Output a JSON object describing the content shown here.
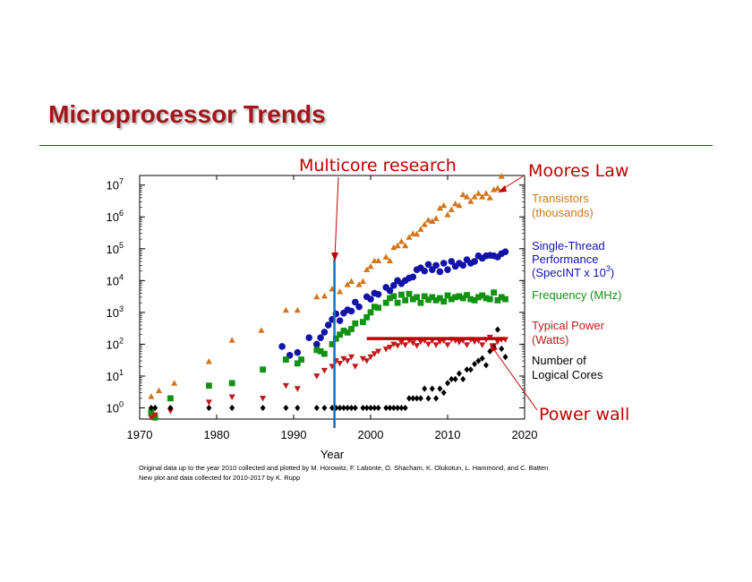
{
  "slide": {
    "title": "Microprocessor Trends"
  },
  "annotations": {
    "multicore_research": "Multicore research",
    "moores_law": "Moores Law",
    "power_wall": "Power wall"
  },
  "credits": {
    "line1": "Original data up to the year 2010 collected and plotted by M. Horowitz, F. Labonte, O. Shacham, K. Olukotun, L. Hammond, and C. Batten",
    "line2": "New plot and data collected for 2010-2017 by K. Rupp"
  },
  "colors": {
    "title": "#a3161b",
    "callout": "#c00000",
    "transistors": "#d2751b",
    "single_thread": "#1313a8",
    "frequency": "#129112",
    "power": "#c01b1b",
    "cores": "#000000",
    "marker_line": "#1f6db3"
  },
  "chart_data": {
    "type": "scatter",
    "title": "",
    "xlabel": "Year",
    "ylabel": "",
    "xlim": [
      1970,
      2020
    ],
    "ylim_log10": [
      -0.35,
      7.3
    ],
    "y_scale": "log10",
    "x_ticks": [
      "1970",
      "1980",
      "1990",
      "2000",
      "2010",
      "2020"
    ],
    "y_tick_base": "10",
    "y_tick_exponents": [
      "0",
      "1",
      "2",
      "3",
      "4",
      "5",
      "6",
      "7"
    ],
    "legend_placement": "right",
    "vertical_marker_year": 1995.3,
    "power_wall_line": {
      "x": [
        1999.5,
        2017.5
      ],
      "value": 150
    },
    "series": [
      {
        "name": "Transistors",
        "legend": [
          "Transistors",
          "(thousands)"
        ],
        "marker": "triangle-up",
        "color": "#d2751b",
        "points": [
          [
            1971.5,
            2.3
          ],
          [
            1972.5,
            3.5
          ],
          [
            1974.5,
            6
          ],
          [
            1979,
            29
          ],
          [
            1982,
            134
          ],
          [
            1985.8,
            275
          ],
          [
            1989,
            1180
          ],
          [
            1990.5,
            1180
          ],
          [
            1993,
            3100
          ],
          [
            1994,
            3300
          ],
          [
            1995,
            5500
          ],
          [
            1996,
            4500
          ],
          [
            1997,
            7500
          ],
          [
            1997.5,
            9500
          ],
          [
            1998.5,
            7500
          ],
          [
            1999,
            9500
          ],
          [
            1999.5,
            22000
          ],
          [
            2000,
            28000
          ],
          [
            2000.5,
            42000
          ],
          [
            2001,
            42000
          ],
          [
            2002,
            55000
          ],
          [
            2002.5,
            42000
          ],
          [
            2003,
            110000
          ],
          [
            2003.5,
            125000
          ],
          [
            2004,
            170000
          ],
          [
            2004.5,
            125000
          ],
          [
            2005,
            230000
          ],
          [
            2005.5,
            300000
          ],
          [
            2006,
            290000
          ],
          [
            2006.5,
            410000
          ],
          [
            2007,
            580000
          ],
          [
            2007.5,
            800000
          ],
          [
            2008,
            730000
          ],
          [
            2008.5,
            900000
          ],
          [
            2009,
            1900000
          ],
          [
            2009.5,
            2300000
          ],
          [
            2010,
            1170000
          ],
          [
            2010.5,
            1700000
          ],
          [
            2011,
            2600000
          ],
          [
            2011.5,
            2300000
          ],
          [
            2012,
            5000000
          ],
          [
            2012.5,
            4300000
          ],
          [
            2013,
            3100000
          ],
          [
            2013.5,
            4300000
          ],
          [
            2014,
            5500000
          ],
          [
            2014.5,
            4300000
          ],
          [
            2015,
            5500000
          ],
          [
            2015.5,
            4000000
          ],
          [
            2016,
            7200000
          ],
          [
            2016.5,
            8000000
          ],
          [
            2017,
            19000000
          ]
        ]
      },
      {
        "name": "Single-Thread Performance",
        "legend": [
          "Single-Thread",
          "Performance",
          "(SpecINT x 10",
          "3",
          ")"
        ],
        "marker": "circle",
        "color": "#1313a8",
        "points": [
          [
            1988.5,
            85
          ],
          [
            1989.5,
            45
          ],
          [
            1990.5,
            55
          ],
          [
            1992,
            160
          ],
          [
            1993,
            100
          ],
          [
            1993.5,
            160
          ],
          [
            1994,
            240
          ],
          [
            1994.5,
            400
          ],
          [
            1995,
            600
          ],
          [
            1995.5,
            900
          ],
          [
            1996,
            550
          ],
          [
            1996.5,
            950
          ],
          [
            1997,
            1200
          ],
          [
            1997.5,
            1100
          ],
          [
            1998,
            2100
          ],
          [
            1998.5,
            1500
          ],
          [
            1999.5,
            3100
          ],
          [
            2000,
            2600
          ],
          [
            2000.5,
            4000
          ],
          [
            2001,
            3700
          ],
          [
            2002,
            6100
          ],
          [
            2002.5,
            4800
          ],
          [
            2003,
            7000
          ],
          [
            2003.5,
            10000
          ],
          [
            2004,
            8000
          ],
          [
            2004.5,
            10000
          ],
          [
            2005,
            12000
          ],
          [
            2005.5,
            13000
          ],
          [
            2006,
            22000
          ],
          [
            2006.5,
            25000
          ],
          [
            2007,
            20000
          ],
          [
            2007.5,
            32000
          ],
          [
            2008,
            22000
          ],
          [
            2008.5,
            30000
          ],
          [
            2009,
            19000
          ],
          [
            2009.5,
            35000
          ],
          [
            2010,
            22000
          ],
          [
            2010.5,
            40000
          ],
          [
            2011,
            28000
          ],
          [
            2011.5,
            35000
          ],
          [
            2012,
            30000
          ],
          [
            2012.5,
            45000
          ],
          [
            2013,
            35000
          ],
          [
            2013.5,
            40000
          ],
          [
            2014,
            60000
          ],
          [
            2014.5,
            50000
          ],
          [
            2015,
            60000
          ],
          [
            2015.5,
            62000
          ],
          [
            2016,
            60000
          ],
          [
            2016.5,
            55000
          ],
          [
            2017,
            70000
          ],
          [
            2017.5,
            80000
          ]
        ]
      },
      {
        "name": "Frequency (MHz)",
        "legend": [
          "Frequency (MHz)"
        ],
        "marker": "square",
        "color": "#129112",
        "points": [
          [
            1971.5,
            0.75
          ],
          [
            1972,
            0.5
          ],
          [
            1974,
            2
          ],
          [
            1979,
            5
          ],
          [
            1982,
            6
          ],
          [
            1986,
            16
          ],
          [
            1989,
            33
          ],
          [
            1990.5,
            25
          ],
          [
            1991,
            33
          ],
          [
            1993,
            66
          ],
          [
            1993.5,
            60
          ],
          [
            1994,
            50
          ],
          [
            1995,
            100
          ],
          [
            1995.5,
            150
          ],
          [
            1996,
            200
          ],
          [
            1996.5,
            266
          ],
          [
            1997,
            233
          ],
          [
            1997.5,
            300
          ],
          [
            1998,
            450
          ],
          [
            1999,
            500
          ],
          [
            1999.5,
            700
          ],
          [
            2000,
            1000
          ],
          [
            2000.5,
            1500
          ],
          [
            2001,
            1400
          ],
          [
            2002,
            2000
          ],
          [
            2002.5,
            2800
          ],
          [
            2003,
            3200
          ],
          [
            2003.5,
            2000
          ],
          [
            2004,
            3600
          ],
          [
            2004.5,
            2400
          ],
          [
            2005,
            3800
          ],
          [
            2005.5,
            2600
          ],
          [
            2006,
            3000
          ],
          [
            2006.5,
            2000
          ],
          [
            2007,
            3200
          ],
          [
            2007.5,
            2500
          ],
          [
            2008,
            3000
          ],
          [
            2008.5,
            2400
          ],
          [
            2009,
            2800
          ],
          [
            2009.5,
            2200
          ],
          [
            2010,
            3400
          ],
          [
            2010.5,
            2600
          ],
          [
            2011,
            3000
          ],
          [
            2011.5,
            3200
          ],
          [
            2012,
            2800
          ],
          [
            2012.5,
            3500
          ],
          [
            2013,
            2600
          ],
          [
            2013.5,
            2400
          ],
          [
            2014,
            3000
          ],
          [
            2014.5,
            3400
          ],
          [
            2015,
            2800
          ],
          [
            2015.5,
            2600
          ],
          [
            2016,
            4200
          ],
          [
            2016.5,
            2400
          ],
          [
            2017,
            3000
          ],
          [
            2017.5,
            2600
          ]
        ]
      },
      {
        "name": "Typical Power (Watts)",
        "legend": [
          "Typical Power",
          "(Watts)"
        ],
        "marker": "triangle-down",
        "color": "#c01b1b",
        "points": [
          [
            1971.5,
            0.5
          ],
          [
            1972,
            0.6
          ],
          [
            1974,
            0.8
          ],
          [
            1979,
            1.5
          ],
          [
            1982,
            2.2
          ],
          [
            1986,
            2
          ],
          [
            1989,
            5
          ],
          [
            1990.5,
            4
          ],
          [
            1993,
            10
          ],
          [
            1994,
            15
          ],
          [
            1995,
            20
          ],
          [
            1995.5,
            30
          ],
          [
            1996,
            25
          ],
          [
            1996.5,
            35
          ],
          [
            1997,
            30
          ],
          [
            1997.5,
            40
          ],
          [
            1998,
            20
          ],
          [
            1999,
            35
          ],
          [
            1999.5,
            30
          ],
          [
            2000,
            40
          ],
          [
            2000.5,
            50
          ],
          [
            2001,
            60
          ],
          [
            2002,
            70
          ],
          [
            2002.5,
            80
          ],
          [
            2003,
            100
          ],
          [
            2003.5,
            90
          ],
          [
            2004,
            115
          ],
          [
            2004.5,
            95
          ],
          [
            2005,
            130
          ],
          [
            2005.5,
            110
          ],
          [
            2006,
            90
          ],
          [
            2006.5,
            120
          ],
          [
            2007,
            130
          ],
          [
            2007.5,
            100
          ],
          [
            2008,
            130
          ],
          [
            2008.5,
            95
          ],
          [
            2009,
            120
          ],
          [
            2009.5,
            130
          ],
          [
            2010,
            95
          ],
          [
            2010.5,
            140
          ],
          [
            2011,
            130
          ],
          [
            2011.5,
            115
          ],
          [
            2012,
            130
          ],
          [
            2012.5,
            95
          ],
          [
            2013,
            140
          ],
          [
            2013.5,
            120
          ],
          [
            2014,
            130
          ],
          [
            2014.5,
            95
          ],
          [
            2015,
            140
          ],
          [
            2015.5,
            165
          ],
          [
            2016,
            90
          ],
          [
            2016.5,
            120
          ],
          [
            2017,
            140
          ],
          [
            2017.5,
            140
          ]
        ]
      },
      {
        "name": "Number of Logical Cores",
        "legend": [
          "Number of",
          "Logical Cores"
        ],
        "marker": "diamond",
        "color": "#000000",
        "points": [
          [
            1971.5,
            1
          ],
          [
            1972,
            1
          ],
          [
            1974,
            1
          ],
          [
            1979,
            1
          ],
          [
            1982,
            1
          ],
          [
            1986,
            1
          ],
          [
            1989,
            1
          ],
          [
            1990.5,
            1
          ],
          [
            1993,
            1
          ],
          [
            1994,
            1
          ],
          [
            1995,
            1
          ],
          [
            1995.5,
            1
          ],
          [
            1996,
            1
          ],
          [
            1996.5,
            1
          ],
          [
            1997,
            1
          ],
          [
            1997.5,
            1
          ],
          [
            1998,
            1
          ],
          [
            1999,
            1
          ],
          [
            1999.5,
            1
          ],
          [
            2000,
            1
          ],
          [
            2000.5,
            1
          ],
          [
            2001,
            1
          ],
          [
            2002,
            1
          ],
          [
            2002.5,
            1
          ],
          [
            2003,
            1
          ],
          [
            2003.5,
            1
          ],
          [
            2004,
            1
          ],
          [
            2004.5,
            1
          ],
          [
            2005,
            2
          ],
          [
            2005.5,
            2
          ],
          [
            2006,
            2
          ],
          [
            2006.5,
            2
          ],
          [
            2007,
            4
          ],
          [
            2007.5,
            2
          ],
          [
            2008,
            4
          ],
          [
            2008.5,
            2
          ],
          [
            2009,
            4
          ],
          [
            2009.5,
            3
          ],
          [
            2010,
            6
          ],
          [
            2010.5,
            8
          ],
          [
            2011,
            8
          ],
          [
            2011.5,
            12
          ],
          [
            2012,
            8
          ],
          [
            2012.5,
            16
          ],
          [
            2013,
            16
          ],
          [
            2013.5,
            24
          ],
          [
            2014,
            30
          ],
          [
            2014.5,
            36
          ],
          [
            2015,
            22
          ],
          [
            2015.5,
            60
          ],
          [
            2016,
            80
          ],
          [
            2016.5,
            288
          ],
          [
            2017,
            72
          ],
          [
            2017.5,
            40
          ]
        ]
      }
    ]
  }
}
